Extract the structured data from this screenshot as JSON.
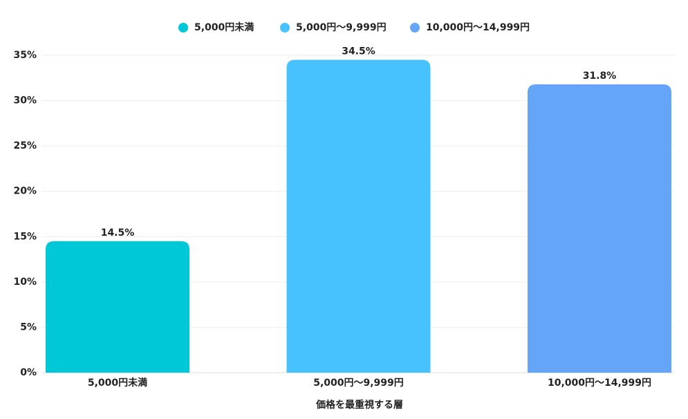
{
  "chart_data": {
    "type": "bar",
    "x_label": "価格を最重視する層",
    "categories": [
      "5,000円未満",
      "5,000円〜9,999円",
      "10,000円〜14,999円"
    ],
    "values": [
      14.5,
      34.5,
      31.8
    ],
    "value_labels": [
      "14.5%",
      "34.5%",
      "31.8%"
    ],
    "colors": [
      "#00c8d7",
      "#48c2ff",
      "#64a5f8"
    ],
    "ylim": [
      0,
      35
    ],
    "yticks": [
      {
        "value": 0,
        "label": "0%"
      },
      {
        "value": 5,
        "label": "5%"
      },
      {
        "value": 10,
        "label": "10%"
      },
      {
        "value": 15,
        "label": "15%"
      },
      {
        "value": 20,
        "label": "20%"
      },
      {
        "value": 25,
        "label": "25%"
      },
      {
        "value": 30,
        "label": "30%"
      },
      {
        "value": 35,
        "label": "35%"
      }
    ],
    "grid": true,
    "legend": "top"
  }
}
